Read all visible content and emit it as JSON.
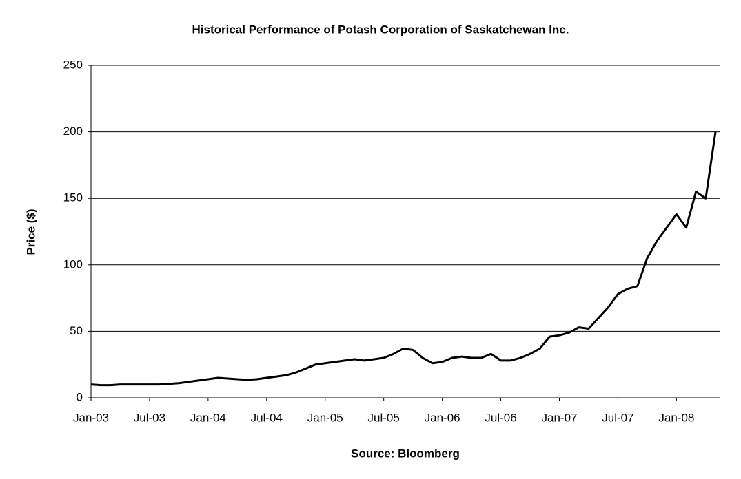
{
  "chart_data": {
    "type": "line",
    "title": "Historical Performance of Potash Corporation of Saskatchewan Inc.",
    "y_label": "Price ($)",
    "x_label": "Source: Bloomberg",
    "x": [
      "2003-01",
      "2003-02",
      "2003-03",
      "2003-04",
      "2003-05",
      "2003-06",
      "2003-07",
      "2003-08",
      "2003-09",
      "2003-10",
      "2003-11",
      "2003-12",
      "2004-01",
      "2004-02",
      "2004-03",
      "2004-04",
      "2004-05",
      "2004-06",
      "2004-07",
      "2004-08",
      "2004-09",
      "2004-10",
      "2004-11",
      "2004-12",
      "2005-01",
      "2005-02",
      "2005-03",
      "2005-04",
      "2005-05",
      "2005-06",
      "2005-07",
      "2005-08",
      "2005-09",
      "2005-10",
      "2005-11",
      "2005-12",
      "2006-01",
      "2006-02",
      "2006-03",
      "2006-04",
      "2006-05",
      "2006-06",
      "2006-07",
      "2006-08",
      "2006-09",
      "2006-10",
      "2006-11",
      "2006-12",
      "2007-01",
      "2007-02",
      "2007-03",
      "2007-04",
      "2007-05",
      "2007-06",
      "2007-07",
      "2007-08",
      "2007-09",
      "2007-10",
      "2007-11",
      "2007-12",
      "2008-01",
      "2008-02",
      "2008-03",
      "2008-04",
      "2008-05"
    ],
    "series": [
      {
        "name": "Price",
        "color": "#000000",
        "values": [
          10,
          9.5,
          9.5,
          10,
          10,
          10,
          10,
          10,
          10.5,
          11,
          12,
          13,
          14,
          15,
          14.5,
          14,
          13.5,
          14,
          15,
          16,
          17,
          19,
          22,
          25,
          26,
          27,
          28,
          29,
          28,
          29,
          30,
          33,
          37,
          36,
          30,
          26,
          27,
          30,
          31,
          30,
          30,
          33,
          28,
          28,
          30,
          33,
          37,
          46,
          47,
          49,
          53,
          52,
          60,
          68,
          78,
          82,
          84,
          105,
          118,
          128,
          138,
          128,
          155,
          150,
          200
        ]
      }
    ],
    "xlim": [
      "2003-01",
      "2008-05"
    ],
    "xticks": [
      {
        "value": "2003-01",
        "label": "Jan-03"
      },
      {
        "value": "2003-07",
        "label": "Jul-03"
      },
      {
        "value": "2004-01",
        "label": "Jan-04"
      },
      {
        "value": "2004-07",
        "label": "Jul-04"
      },
      {
        "value": "2005-01",
        "label": "Jan-05"
      },
      {
        "value": "2005-07",
        "label": "Jul-05"
      },
      {
        "value": "2006-01",
        "label": "Jan-06"
      },
      {
        "value": "2006-07",
        "label": "Jul-06"
      },
      {
        "value": "2007-01",
        "label": "Jan-07"
      },
      {
        "value": "2007-07",
        "label": "Jul-07"
      },
      {
        "value": "2008-01",
        "label": "Jan-08"
      }
    ],
    "ylim": [
      0,
      250
    ],
    "yticks": [
      0,
      50,
      100,
      150,
      200,
      250
    ],
    "grid": true
  }
}
